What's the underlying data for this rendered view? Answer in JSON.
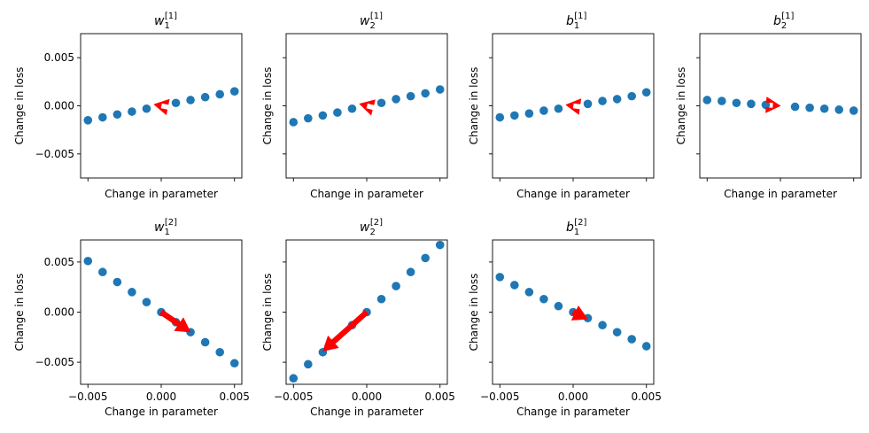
{
  "chart_data": [
    {
      "type": "scatter",
      "title": "w_1^{[1]}",
      "title_parts": {
        "base": "w",
        "sub": "1",
        "sup": "[1]"
      },
      "xlabel": "Change in parameter",
      "ylabel": "Change in loss",
      "xlim": [
        -0.0055,
        0.0055
      ],
      "ylim": [
        -0.0075,
        0.0075
      ],
      "xticks": [
        "-0.005",
        "0.000",
        "0.005"
      ],
      "xtick_values": [
        -0.005,
        0.0,
        0.005
      ],
      "yticks": [
        "0.005",
        "0.000",
        "−0.005"
      ],
      "ytick_values": [
        0.005,
        0.0,
        -0.005
      ],
      "show_xticklabels": false,
      "show_yticklabels": true,
      "x": [
        -0.005,
        -0.004,
        -0.003,
        -0.002,
        -0.001,
        0.001,
        0.002,
        0.003,
        0.004,
        0.005
      ],
      "y": [
        -0.0015,
        -0.0012,
        -0.0009,
        -0.0006,
        -0.0003,
        0.0003,
        0.0006,
        0.0009,
        0.0012,
        0.0015
      ],
      "arrow": {
        "x0": 0.0,
        "y0": 0.0,
        "x1": -0.0005,
        "y1": 0.00015
      },
      "color": "#1f77b4",
      "arrow_color": "#ff0000"
    },
    {
      "type": "scatter",
      "title": "w_2^{[1]}",
      "title_parts": {
        "base": "w",
        "sub": "2",
        "sup": "[1]"
      },
      "xlabel": "Change in parameter",
      "ylabel": "Change in loss",
      "xlim": [
        -0.0055,
        0.0055
      ],
      "ylim": [
        -0.0075,
        0.0075
      ],
      "xticks": [
        "-0.005",
        "0.000",
        "0.005"
      ],
      "xtick_values": [
        -0.005,
        0.0,
        0.005
      ],
      "yticks": [
        "0.005",
        "0.000",
        "−0.005"
      ],
      "ytick_values": [
        0.005,
        0.0,
        -0.005
      ],
      "show_xticklabels": false,
      "show_yticklabels": false,
      "x": [
        -0.005,
        -0.004,
        -0.003,
        -0.002,
        -0.001,
        0.001,
        0.002,
        0.003,
        0.004,
        0.005
      ],
      "y": [
        -0.0017,
        -0.0013,
        -0.001,
        -0.0007,
        -0.0003,
        0.0003,
        0.0007,
        0.001,
        0.0013,
        0.0017
      ],
      "arrow": {
        "x0": 0.0,
        "y0": 0.0,
        "x1": -0.0005,
        "y1": 0.0002
      },
      "color": "#1f77b4",
      "arrow_color": "#ff0000"
    },
    {
      "type": "scatter",
      "title": "b_1^{[1]}",
      "title_parts": {
        "base": "b",
        "sub": "1",
        "sup": "[1]"
      },
      "xlabel": "Change in parameter",
      "ylabel": "Change in loss",
      "xlim": [
        -0.0055,
        0.0055
      ],
      "ylim": [
        -0.0075,
        0.0075
      ],
      "xticks": [
        "-0.005",
        "0.000",
        "0.005"
      ],
      "xtick_values": [
        -0.005,
        0.0,
        0.005
      ],
      "yticks": [
        "0.005",
        "0.000",
        "−0.005"
      ],
      "ytick_values": [
        0.005,
        0.0,
        -0.005
      ],
      "show_xticklabels": false,
      "show_yticklabels": false,
      "x": [
        -0.005,
        -0.004,
        -0.003,
        -0.002,
        -0.001,
        0.001,
        0.002,
        0.003,
        0.004,
        0.005
      ],
      "y": [
        -0.0012,
        -0.001,
        -0.0008,
        -0.0005,
        -0.0003,
        0.0002,
        0.0005,
        0.0007,
        0.001,
        0.0014
      ],
      "arrow": {
        "x0": 0.0,
        "y0": 0.0,
        "x1": -0.0005,
        "y1": 0.0001
      },
      "color": "#1f77b4",
      "arrow_color": "#ff0000"
    },
    {
      "type": "scatter",
      "title": "b_2^{[1]}",
      "title_parts": {
        "base": "b",
        "sub": "2",
        "sup": "[1]"
      },
      "xlabel": "Change in parameter",
      "ylabel": "Change in loss",
      "xlim": [
        -0.0055,
        0.0055
      ],
      "ylim": [
        -0.0075,
        0.0075
      ],
      "xticks": [
        "-0.005",
        "0.000",
        "0.005"
      ],
      "xtick_values": [
        -0.005,
        0.0,
        0.005
      ],
      "yticks": [
        "0.005",
        "0.000",
        "−0.005"
      ],
      "ytick_values": [
        0.005,
        0.0,
        -0.005
      ],
      "show_xticklabels": false,
      "show_yticklabels": false,
      "x": [
        -0.005,
        -0.004,
        -0.003,
        -0.002,
        -0.001,
        0.001,
        0.002,
        0.003,
        0.004,
        0.005
      ],
      "y": [
        0.0006,
        0.0005,
        0.0003,
        0.0002,
        0.0001,
        -0.0001,
        -0.0002,
        -0.0003,
        -0.0004,
        -0.0005
      ],
      "arrow": {
        "x0": -0.0005,
        "y0": 5e-05,
        "x1": 0.0,
        "y1": 0.0
      },
      "color": "#1f77b4",
      "arrow_color": "#ff0000"
    },
    {
      "type": "scatter",
      "title": "w_1^{[2]}",
      "title_parts": {
        "base": "w",
        "sub": "1",
        "sup": "[2]"
      },
      "xlabel": "Change in parameter",
      "ylabel": "Change in loss",
      "xlim": [
        -0.0055,
        0.0055
      ],
      "ylim": [
        -0.0072,
        0.0072
      ],
      "xticks": [
        "−0.005",
        "0.000",
        "0.005"
      ],
      "xtick_values": [
        -0.005,
        0.0,
        0.005
      ],
      "yticks": [
        "0.005",
        "0.000",
        "−0.005"
      ],
      "ytick_values": [
        0.005,
        0.0,
        -0.005
      ],
      "show_xticklabels": true,
      "show_yticklabels": true,
      "x": [
        -0.005,
        -0.004,
        -0.003,
        -0.002,
        -0.001,
        0.0,
        0.001,
        0.002,
        0.003,
        0.004,
        0.005
      ],
      "y": [
        0.0051,
        0.004,
        0.003,
        0.002,
        0.001,
        0.0,
        -0.001,
        -0.002,
        -0.003,
        -0.004,
        -0.0051
      ],
      "arrow": {
        "x0": 0.0,
        "y0": 0.0,
        "x1": 0.002,
        "y1": -0.002
      },
      "color": "#1f77b4",
      "arrow_color": "#ff0000"
    },
    {
      "type": "scatter",
      "title": "w_2^{[2]}",
      "title_parts": {
        "base": "w",
        "sub": "2",
        "sup": "[2]"
      },
      "xlabel": "Change in parameter",
      "ylabel": "Change in loss",
      "xlim": [
        -0.0055,
        0.0055
      ],
      "ylim": [
        -0.0072,
        0.0072
      ],
      "xticks": [
        "−0.005",
        "0.000",
        "0.005"
      ],
      "xtick_values": [
        -0.005,
        0.0,
        0.005
      ],
      "yticks": [
        "0.005",
        "0.000",
        "−0.005"
      ],
      "ytick_values": [
        0.005,
        0.0,
        -0.005
      ],
      "show_xticklabels": true,
      "show_yticklabels": false,
      "x": [
        -0.005,
        -0.004,
        -0.003,
        -0.001,
        0.0,
        0.001,
        0.002,
        0.003,
        0.004,
        0.005
      ],
      "y": [
        -0.0066,
        -0.0052,
        -0.004,
        -0.0013,
        0.0,
        0.0013,
        0.0026,
        0.004,
        0.0054,
        0.0067
      ],
      "arrow": {
        "x0": 0.0,
        "y0": 0.0,
        "x1": -0.003,
        "y1": -0.0039
      },
      "color": "#1f77b4",
      "arrow_color": "#ff0000"
    },
    {
      "type": "scatter",
      "title": "b_1^{[2]}",
      "title_parts": {
        "base": "b",
        "sub": "1",
        "sup": "[2]"
      },
      "xlabel": "Change in parameter",
      "ylabel": "Change in loss",
      "xlim": [
        -0.0055,
        0.0055
      ],
      "ylim": [
        -0.0072,
        0.0072
      ],
      "xticks": [
        "−0.005",
        "0.000",
        "0.005"
      ],
      "xtick_values": [
        -0.005,
        0.0,
        0.005
      ],
      "yticks": [
        "0.005",
        "0.000",
        "−0.005"
      ],
      "ytick_values": [
        0.005,
        0.0,
        -0.005
      ],
      "show_xticklabels": true,
      "show_yticklabels": false,
      "x": [
        -0.005,
        -0.004,
        -0.003,
        -0.002,
        -0.001,
        0.0,
        0.001,
        0.002,
        0.003,
        0.004,
        0.005
      ],
      "y": [
        0.0035,
        0.0027,
        0.002,
        0.0013,
        0.0006,
        0.0,
        -0.0006,
        -0.0013,
        -0.002,
        -0.0027,
        -0.0034
      ],
      "arrow": {
        "x0": 0.0,
        "y0": 0.0,
        "x1": 0.001,
        "y1": -0.0007
      },
      "color": "#1f77b4",
      "arrow_color": "#ff0000"
    }
  ]
}
